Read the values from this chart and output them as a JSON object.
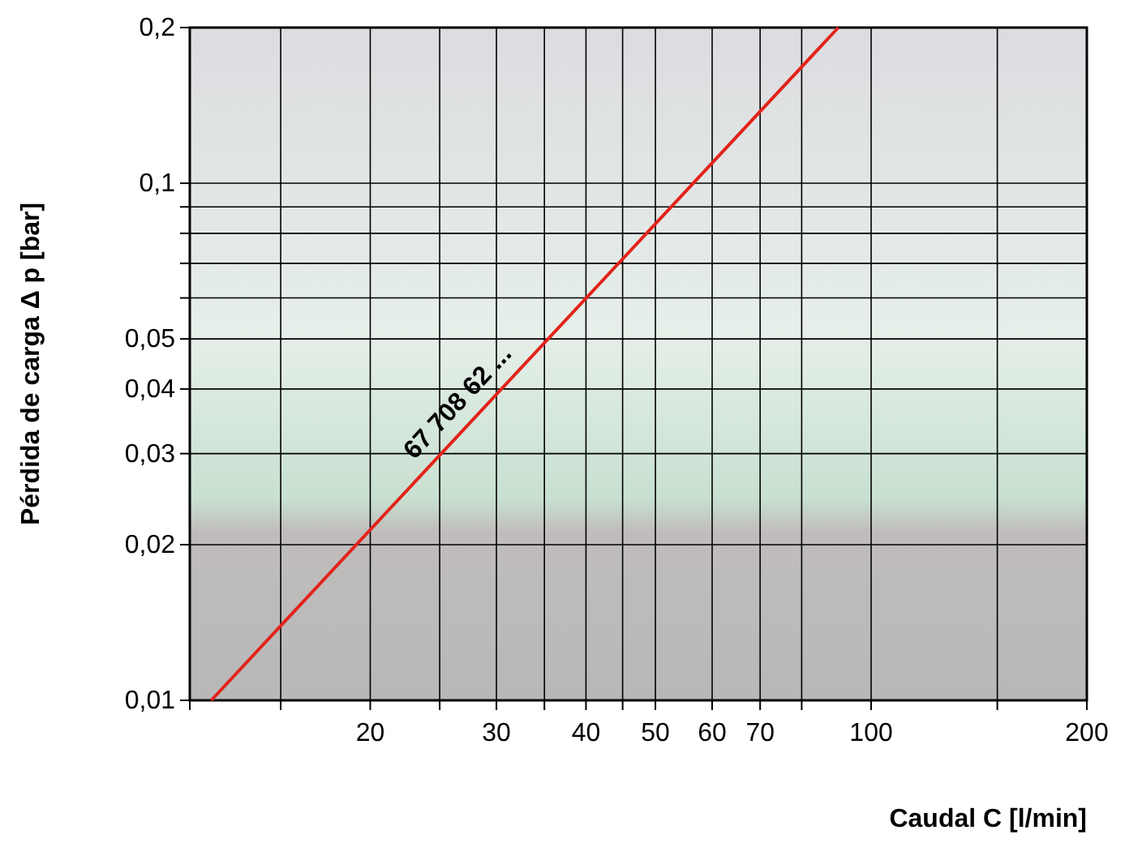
{
  "chart_data": {
    "type": "line",
    "xlabel": "Caudal C [l/min]",
    "ylabel": "Pérdida de carga Δ p [bar]",
    "log": "xy",
    "grid": true,
    "xlim": [
      11.2,
      200
    ],
    "xticks": [
      {
        "value": 15,
        "label": null
      },
      {
        "value": 20,
        "label": "20"
      },
      {
        "value": 25,
        "label": null
      },
      {
        "value": 30,
        "label": "30"
      },
      {
        "value": 35,
        "label": null
      },
      {
        "value": 40,
        "label": "40"
      },
      {
        "value": 45,
        "label": null
      },
      {
        "value": 50,
        "label": "50"
      },
      {
        "value": 60,
        "label": "60"
      },
      {
        "value": 70,
        "label": "70"
      },
      {
        "value": 80,
        "label": null
      },
      {
        "value": 100,
        "label": "100"
      },
      {
        "value": 150,
        "label": null
      },
      {
        "value": 200,
        "label": "200"
      }
    ],
    "ylim": [
      0.01,
      0.2
    ],
    "yticks": [
      {
        "value": 0.01,
        "label": "0,01"
      },
      {
        "value": 0.02,
        "label": "0,02"
      },
      {
        "value": 0.03,
        "label": "0,03"
      },
      {
        "value": 0.04,
        "label": "0,04"
      },
      {
        "value": 0.05,
        "label": "0,05"
      },
      {
        "value": 0.06,
        "label": null
      },
      {
        "value": 0.07,
        "label": null
      },
      {
        "value": 0.08,
        "label": null
      },
      {
        "value": 0.09,
        "label": null
      },
      {
        "value": 0.1,
        "label": "0,1"
      },
      {
        "value": 0.2,
        "label": "0,2"
      }
    ],
    "series": [
      {
        "x": [
          12,
          90
        ],
        "values": [
          0.01,
          0.2
        ],
        "color": "#e2231a"
      }
    ],
    "annotations": [
      {
        "text": "67 708 62 ...",
        "x": 28,
        "y": 0.035
      }
    ]
  }
}
